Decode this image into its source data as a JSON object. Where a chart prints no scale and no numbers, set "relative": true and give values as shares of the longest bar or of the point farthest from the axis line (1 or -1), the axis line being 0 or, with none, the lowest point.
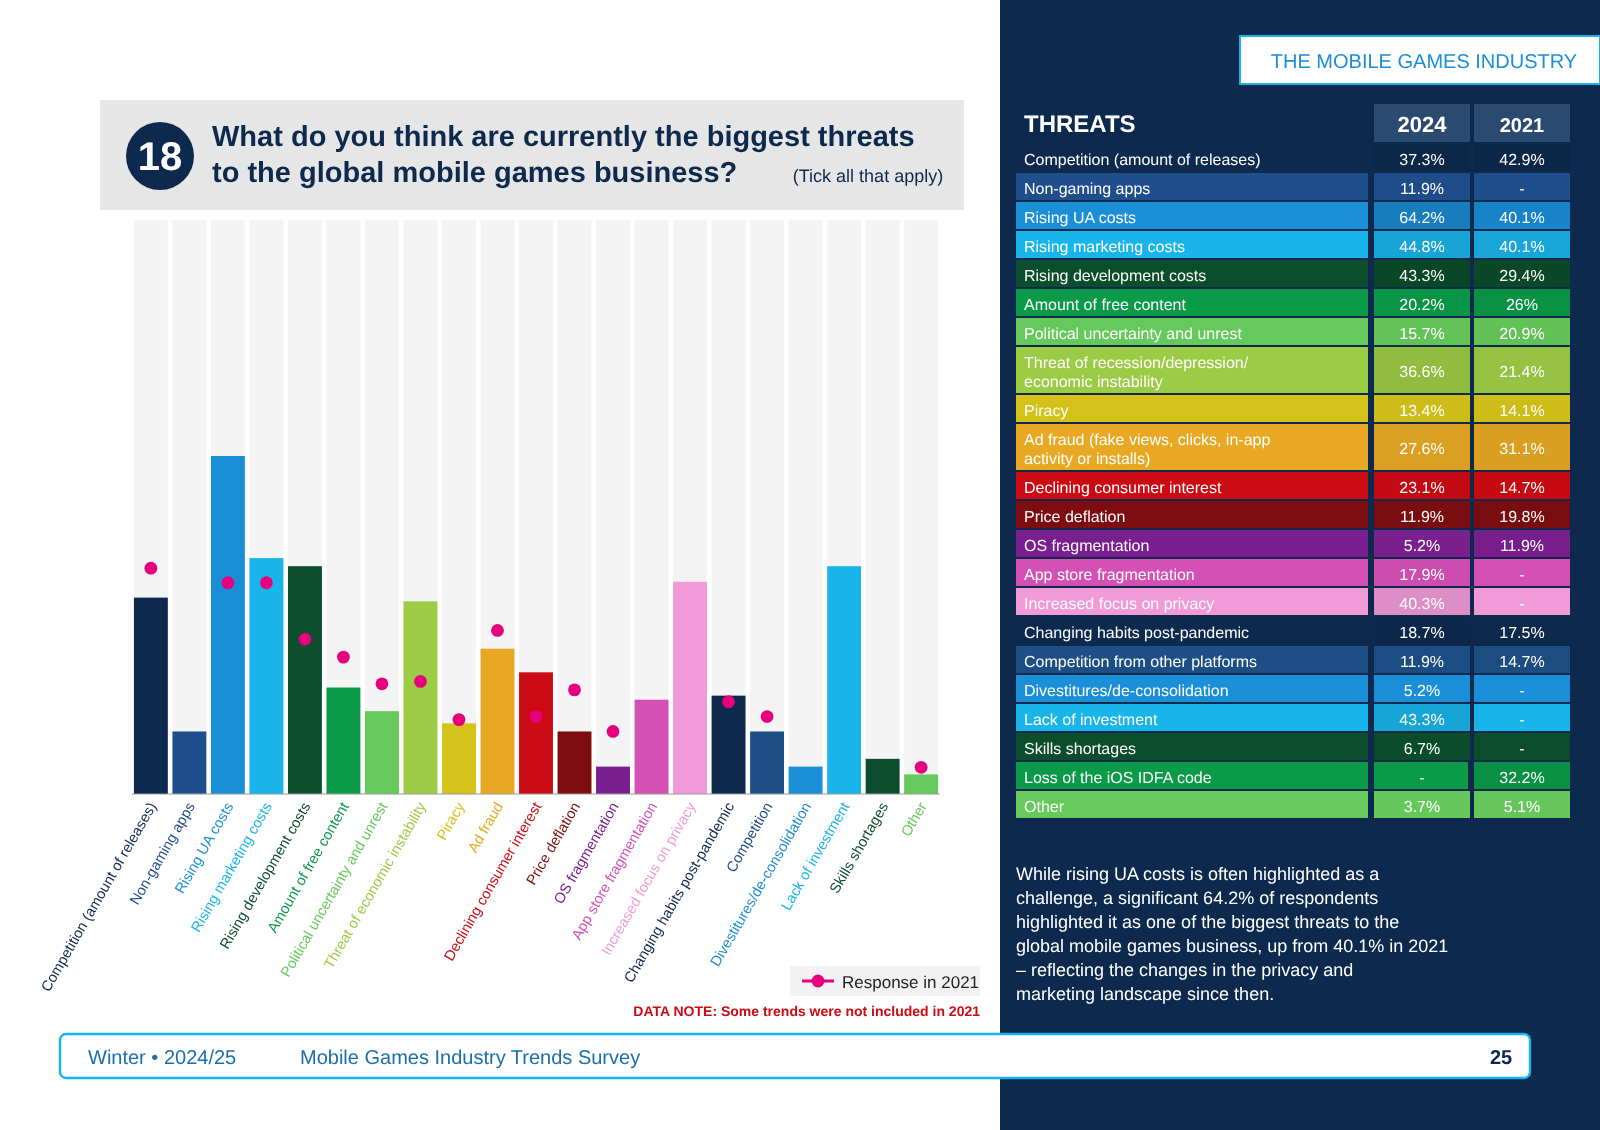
{
  "chart_data": [
    {
      "type": "bar",
      "title": "What do you think are currently the biggest threats to the global mobile games business?",
      "subtitle": "(Tick all that apply)",
      "categories": [
        "Competition (amount of releases)",
        "Non-gaming apps",
        "Rising UA costs",
        "Rising marketing costs",
        "Rising development costs",
        "Amount of free content",
        "Political uncertainty and unrest",
        "Threat of economic instability",
        "Piracy",
        "Ad fraud",
        "Declining consumer interest",
        "Price deflation",
        "OS fragmentation",
        "App store fragmentation",
        "Increased focus on privacy",
        "Changing habits post-pandemic",
        "Competition",
        "Divestitures/de-consolidation",
        "Lack of investment",
        "Skills shortages",
        "Other"
      ],
      "values": [
        0.581,
        0.185,
        1,
        0.698,
        0.674,
        0.315,
        0.245,
        0.57,
        0.209,
        0.43,
        0.36,
        0.185,
        0.081,
        0.279,
        0.628,
        0.291,
        0.185,
        0.081,
        0.674,
        0.104,
        0.058
      ],
      "colors": [
        "#0d2a4e",
        "#1f4e8c",
        "#1a8fd8",
        "#19b5ea",
        "#0b4d2c",
        "#0a9a48",
        "#66c95b",
        "#9ccb45",
        "#d4c11a",
        "#e8a823",
        "#cc0a13",
        "#7d0d10",
        "#7a1f8f",
        "#d450b5",
        "#f09ad8",
        "#0d2a4e",
        "#1d4f85",
        "#1a8fd8",
        "#19b5ea",
        "#0b4d2c",
        "#66c95b"
      ],
      "series": [
        {
          "name": "Response in 2021",
          "type": "scatter",
          "color": "#e6007e",
          "marker": "circle",
          "x": [
            "Competition (amount of releases)",
            "Non-gaming apps",
            "Rising UA costs",
            "Rising marketing costs",
            "Rising development costs",
            "Amount of free content",
            "Political uncertainty and unrest",
            "Threat of economic instability",
            "Piracy",
            "Ad fraud",
            "Declining consumer interest",
            "Price deflation",
            "OS fragmentation",
            "App store fragmentation",
            "Increased focus on privacy",
            "Changing habits post-pandemic",
            "Competition",
            "Divestitures/de-consolidation",
            "Lack of investment",
            "Skills shortages",
            "Other"
          ],
          "values": [
            0.668,
            null,
            0.625,
            0.625,
            0.458,
            0.405,
            0.326,
            0.333,
            0.22,
            0.484,
            0.229,
            0.308,
            0.185,
            null,
            null,
            0.273,
            0.229,
            null,
            null,
            null,
            0.079
          ]
        }
      ],
      "legend": "bottom right",
      "relative": true,
      "annotations": [
        "18",
        "DATA NOTE: Some trends were not included in 2021",
        "Winter • 2024/25",
        "Mobile Games Industry Trends Survey",
        "25"
      ]
    },
    {
      "type": "heatmap",
      "title": "THREATS",
      "categories": [
        "2024",
        "2021"
      ],
      "y_categories": [
        "Competition (amount of releases)",
        "Non-gaming apps",
        "Rising UA costs",
        "Rising marketing costs",
        "Rising development costs",
        "Amount of free content",
        "Political uncertainty and unrest",
        "Threat of recession/depression/ economic instability",
        "Piracy",
        "Ad fraud (fake views, clicks, in-app activity or installs)",
        "Declining consumer interest",
        "Price deflation",
        "OS fragmentation",
        "App store fragmentation",
        "Increased focus on privacy",
        "Changing habits post-pandemic",
        "Competition from other platforms",
        "Divestitures/de-consolidation",
        "Lack of investment",
        "Skills shortages",
        "Loss of the iOS IDFA code",
        "Other"
      ],
      "colors": [
        "#0d2a4e",
        "#1f4e8c",
        "#1a8fd8",
        "#19b5ea",
        "#0b4d2c",
        "#0a9a48",
        "#66c95b",
        "#9ccb45",
        "#d4c11a",
        "#e8a823",
        "#cc0a13",
        "#7d0d10",
        "#7a1f8f",
        "#d450b5",
        "#f09ad8",
        "#0d2a4e",
        "#1d4f85",
        "#1a8fd8",
        "#19b5ea",
        "#0b4d2c",
        "#0a9a48",
        "#66c95b"
      ],
      "cells": [
        [
          37.3,
          42.9
        ],
        [
          11.9,
          null
        ],
        [
          64.2,
          40.1
        ],
        [
          44.8,
          40.1
        ],
        [
          43.3,
          29.4
        ],
        [
          20.2,
          26
        ],
        [
          15.7,
          20.9
        ],
        [
          36.6,
          21.4
        ],
        [
          13.4,
          14.1
        ],
        [
          27.6,
          31.1
        ],
        [
          23.1,
          14.7
        ],
        [
          11.9,
          19.8
        ],
        [
          5.2,
          11.9
        ],
        [
          17.9,
          null
        ],
        [
          40.3,
          null
        ],
        [
          18.7,
          17.5
        ],
        [
          11.9,
          14.7
        ],
        [
          5.2,
          null
        ],
        [
          43.3,
          null
        ],
        [
          6.7,
          null
        ],
        [
          null,
          32.2
        ],
        [
          3.7,
          5.1
        ]
      ],
      "cell_labels": [
        [
          "37.3%",
          "42.9%"
        ],
        [
          "11.9%",
          "-"
        ],
        [
          "64.2%",
          "40.1%"
        ],
        [
          "44.8%",
          "40.1%"
        ],
        [
          "43.3%",
          "29.4%"
        ],
        [
          "20.2%",
          "26%"
        ],
        [
          "15.7%",
          "20.9%"
        ],
        [
          "36.6%",
          "21.4%"
        ],
        [
          "13.4%",
          "14.1%"
        ],
        [
          "27.6%",
          "31.1%"
        ],
        [
          "23.1%",
          "14.7%"
        ],
        [
          "11.9%",
          "19.8%"
        ],
        [
          "5.2%",
          "11.9%"
        ],
        [
          "17.9%",
          "-"
        ],
        [
          "40.3%",
          "-"
        ],
        [
          "18.7%",
          "17.5%"
        ],
        [
          "11.9%",
          "14.7%"
        ],
        [
          "5.2%",
          "-"
        ],
        [
          "43.3%",
          "-"
        ],
        [
          "6.7%",
          "-"
        ],
        [
          "-",
          "32.2%"
        ],
        [
          "3.7%",
          "5.1%"
        ]
      ],
      "annotations": [
        "THE MOBILE GAMES INDUSTRY",
        "While rising UA costs is often highlighted as a challenge, a significant 64.2% of respondents highlighted it as one of the biggest threats to the global mobile games business, up from 40.1% in 2021 – reflecting the changes in the privacy and marketing landscape since then."
      ]
    }
  ]
}
